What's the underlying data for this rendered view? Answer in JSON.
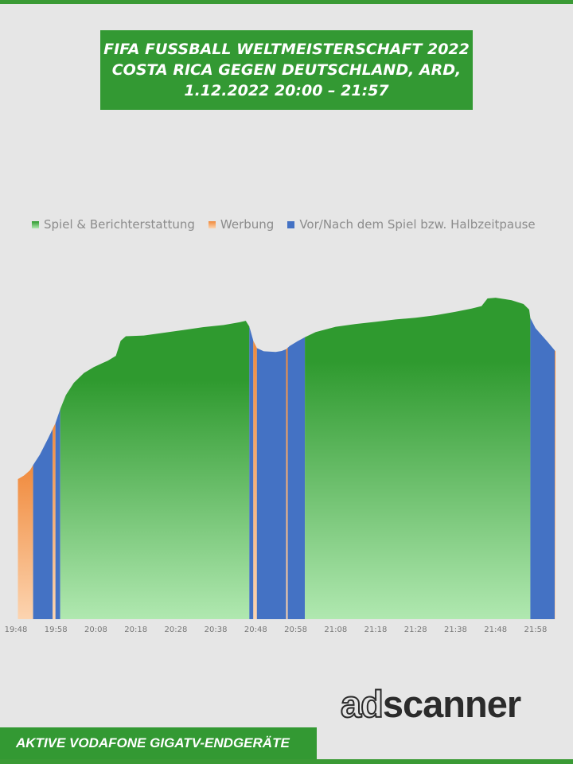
{
  "header": {
    "title_lines": [
      "FIFA FUSSBALL WELTMEISTERSCHAFT 2022",
      "COSTA RICA GEGEN DEUTSCHLAND, ARD,",
      "1.12.2022  20:00 – 21:57"
    ]
  },
  "footer": {
    "caption": "AKTIVE VODAFONE GIGATV-ENDGERÄTE",
    "brand_prefix": "ad",
    "brand_suffix": "scanner"
  },
  "colors": {
    "brand_green": "#339933",
    "spiel_top": "#2f9a2f",
    "spiel_bottom": "#b0e8b0",
    "werbung_top": "#f08a3c",
    "werbung_bottom": "#fcd4b0",
    "pause": "#4472c4"
  },
  "chart_data": {
    "type": "area",
    "title": "FIFA FUSSBALL WELTMEISTERSCHAFT 2022 COSTA RICA GEGEN DEUTSCHLAND, ARD, 1.12.2022 20:00 – 21:57",
    "xlabel": "",
    "ylabel": "",
    "x_unit": "minutes since 19:48",
    "x_range": [
      0,
      135
    ],
    "y_range": [
      0,
      100
    ],
    "y_axis_shown": false,
    "grid": false,
    "legend_position": "top",
    "x_ticks": [
      {
        "x": 0,
        "label": "19:48"
      },
      {
        "x": 10,
        "label": "19:58"
      },
      {
        "x": 20,
        "label": "20:08"
      },
      {
        "x": 30,
        "label": "20:18"
      },
      {
        "x": 40,
        "label": "20:28"
      },
      {
        "x": 50,
        "label": "20:38"
      },
      {
        "x": 60,
        "label": "20:48"
      },
      {
        "x": 70,
        "label": "20:58"
      },
      {
        "x": 80,
        "label": "21:08"
      },
      {
        "x": 90,
        "label": "21:18"
      },
      {
        "x": 100,
        "label": "21:28"
      },
      {
        "x": 110,
        "label": "21:38"
      },
      {
        "x": 120,
        "label": "21:48"
      },
      {
        "x": 130,
        "label": "21:58"
      }
    ],
    "series": [
      {
        "name": "Spiel & Berichterstattung",
        "key": "spiel"
      },
      {
        "name": "Werbung",
        "key": "werbung"
      },
      {
        "name": "Vor/Nach dem Spiel bzw. Halbzeitpause",
        "key": "pause"
      }
    ],
    "segments": [
      {
        "series": "werbung",
        "x_start": 0.5,
        "x_end": 4.3
      },
      {
        "series": "pause",
        "x_start": 4.3,
        "x_end": 9.2
      },
      {
        "series": "werbung",
        "x_start": 9.2,
        "x_end": 9.9
      },
      {
        "series": "pause",
        "x_start": 9.9,
        "x_end": 11.1
      },
      {
        "series": "spiel",
        "x_start": 11.1,
        "x_end": 58.4
      },
      {
        "series": "pause",
        "x_start": 58.4,
        "x_end": 59.4
      },
      {
        "series": "werbung",
        "x_start": 59.4,
        "x_end": 60.3
      },
      {
        "series": "pause",
        "x_start": 60.3,
        "x_end": 67.6
      },
      {
        "series": "werbung",
        "x_start": 67.6,
        "x_end": 68.0
      },
      {
        "series": "pause",
        "x_start": 68.0,
        "x_end": 72.3
      },
      {
        "series": "spiel",
        "x_start": 72.3,
        "x_end": 128.7
      },
      {
        "series": "pause",
        "x_start": 128.7,
        "x_end": 134.8
      },
      {
        "series": "werbung",
        "x_start": 134.8,
        "x_end": 135
      }
    ],
    "profile": [
      [
        0.5,
        40.0
      ],
      [
        2.0,
        41.0
      ],
      [
        3.5,
        42.5
      ],
      [
        4.3,
        44.0
      ],
      [
        6.0,
        47.0
      ],
      [
        8.0,
        51.5
      ],
      [
        9.9,
        56.0
      ],
      [
        11.1,
        60.0
      ],
      [
        12.5,
        64.0
      ],
      [
        14.5,
        67.5
      ],
      [
        17.0,
        70.3
      ],
      [
        19.5,
        72.0
      ],
      [
        21.0,
        72.8
      ],
      [
        23.0,
        73.8
      ],
      [
        25.0,
        75.2
      ],
      [
        26.2,
        79.5
      ],
      [
        27.5,
        80.8
      ],
      [
        32.0,
        81.0
      ],
      [
        37.0,
        81.8
      ],
      [
        42.0,
        82.6
      ],
      [
        47.0,
        83.4
      ],
      [
        52.0,
        84.0
      ],
      [
        56.0,
        84.8
      ],
      [
        57.5,
        85.2
      ],
      [
        58.4,
        83.6
      ],
      [
        59.4,
        79.5
      ],
      [
        60.3,
        77.4
      ],
      [
        62.0,
        76.5
      ],
      [
        65.0,
        76.3
      ],
      [
        66.5,
        76.6
      ],
      [
        67.6,
        77.1
      ],
      [
        68.5,
        78.0
      ],
      [
        70.5,
        79.4
      ],
      [
        72.3,
        80.5
      ],
      [
        75.0,
        82.0
      ],
      [
        80.0,
        83.5
      ],
      [
        85.0,
        84.3
      ],
      [
        90.0,
        84.9
      ],
      [
        95.0,
        85.6
      ],
      [
        100.0,
        86.1
      ],
      [
        105.0,
        86.8
      ],
      [
        110.0,
        87.8
      ],
      [
        114.0,
        88.7
      ],
      [
        116.5,
        89.4
      ],
      [
        118.0,
        91.6
      ],
      [
        120.0,
        91.8
      ],
      [
        124.0,
        91.1
      ],
      [
        127.0,
        90.0
      ],
      [
        128.4,
        88.4
      ],
      [
        128.7,
        86.0
      ],
      [
        130.0,
        83.1
      ],
      [
        133.0,
        79.2
      ],
      [
        135.0,
        76.5
      ]
    ]
  }
}
